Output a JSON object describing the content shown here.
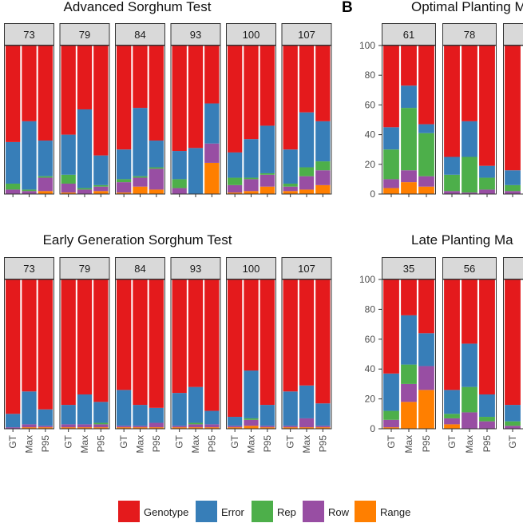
{
  "colors": {
    "Genotype": "#E41A1C",
    "Error": "#377EB8",
    "Rep": "#4DAF4A",
    "Row": "#984EA3",
    "Range": "#FF7F00"
  },
  "legend": {
    "labels": [
      "Genotype",
      "Error",
      "Rep",
      "Row",
      "Range"
    ]
  },
  "chart_data": [
    {
      "type": "stacked-bar",
      "title": "Advanced Sorghum Test",
      "letter": "",
      "facets": [
        {
          "label": "73",
          "bars": {
            "GT": {
              "Range": 0,
              "Row": 3,
              "Rep": 4,
              "Error": 28,
              "Genotype": 65
            },
            "Max": {
              "Range": 0,
              "Row": 2,
              "Rep": 1,
              "Error": 46,
              "Genotype": 51
            },
            "P95": {
              "Range": 2,
              "Row": 9,
              "Rep": 1,
              "Error": 24,
              "Genotype": 64
            }
          }
        },
        {
          "label": "79",
          "bars": {
            "GT": {
              "Range": 1,
              "Row": 6,
              "Rep": 6,
              "Error": 27,
              "Genotype": 60
            },
            "Max": {
              "Range": 0,
              "Row": 3,
              "Rep": 1,
              "Error": 53,
              "Genotype": 43
            },
            "P95": {
              "Range": 2,
              "Row": 3,
              "Rep": 1,
              "Error": 20,
              "Genotype": 74
            }
          }
        },
        {
          "label": "84",
          "bars": {
            "GT": {
              "Range": 1,
              "Row": 7,
              "Rep": 2,
              "Error": 20,
              "Genotype": 70
            },
            "Max": {
              "Range": 5,
              "Row": 6,
              "Rep": 1,
              "Error": 46,
              "Genotype": 42
            },
            "P95": {
              "Range": 3,
              "Row": 14,
              "Rep": 1,
              "Error": 18,
              "Genotype": 64
            }
          }
        },
        {
          "label": "93",
          "bars": {
            "GT": {
              "Range": 0,
              "Row": 4,
              "Rep": 6,
              "Error": 19,
              "Genotype": 71
            },
            "Max": {
              "Range": 0,
              "Row": 0,
              "Rep": 0,
              "Error": 31,
              "Genotype": 69
            },
            "P95": {
              "Range": 21,
              "Row": 13,
              "Rep": 0,
              "Error": 27,
              "Genotype": 39
            }
          }
        },
        {
          "label": "100",
          "bars": {
            "GT": {
              "Range": 1,
              "Row": 5,
              "Rep": 5,
              "Error": 17,
              "Genotype": 72
            },
            "Max": {
              "Range": 2,
              "Row": 8,
              "Rep": 1,
              "Error": 26,
              "Genotype": 63
            },
            "P95": {
              "Range": 5,
              "Row": 8,
              "Rep": 1,
              "Error": 32,
              "Genotype": 54
            }
          }
        },
        {
          "label": "107",
          "bars": {
            "GT": {
              "Range": 2,
              "Row": 3,
              "Rep": 2,
              "Error": 23,
              "Genotype": 70
            },
            "Max": {
              "Range": 3,
              "Row": 9,
              "Rep": 6,
              "Error": 37,
              "Genotype": 45
            },
            "P95": {
              "Range": 6,
              "Row": 10,
              "Rep": 6,
              "Error": 27,
              "Genotype": 51
            }
          }
        }
      ]
    },
    {
      "type": "stacked-bar",
      "title": "Early Generation Sorghum Test",
      "letter": "",
      "facets": [
        {
          "label": "73",
          "bars": {
            "GT": {
              "Range": 0,
              "Row": 1,
              "Rep": 0,
              "Error": 9,
              "Genotype": 90
            },
            "Max": {
              "Range": 1,
              "Row": 2,
              "Rep": 0,
              "Error": 22,
              "Genotype": 75
            },
            "P95": {
              "Range": 1,
              "Row": 1,
              "Rep": 0,
              "Error": 11,
              "Genotype": 87
            }
          }
        },
        {
          "label": "79",
          "bars": {
            "GT": {
              "Range": 1,
              "Row": 2,
              "Rep": 0,
              "Error": 13,
              "Genotype": 84
            },
            "Max": {
              "Range": 1,
              "Row": 2,
              "Rep": 0,
              "Error": 20,
              "Genotype": 77
            },
            "P95": {
              "Range": 1,
              "Row": 2,
              "Rep": 1,
              "Error": 14,
              "Genotype": 82
            }
          }
        },
        {
          "label": "84",
          "bars": {
            "GT": {
              "Range": 1,
              "Row": 1,
              "Rep": 0,
              "Error": 24,
              "Genotype": 74
            },
            "Max": {
              "Range": 1,
              "Row": 1,
              "Rep": 0,
              "Error": 14,
              "Genotype": 84
            },
            "P95": {
              "Range": 1,
              "Row": 3,
              "Rep": 0,
              "Error": 10,
              "Genotype": 86
            }
          }
        },
        {
          "label": "93",
          "bars": {
            "GT": {
              "Range": 1,
              "Row": 1,
              "Rep": 0,
              "Error": 22,
              "Genotype": 76
            },
            "Max": {
              "Range": 1,
              "Row": 2,
              "Rep": 1,
              "Error": 24,
              "Genotype": 72
            },
            "P95": {
              "Range": 1,
              "Row": 2,
              "Rep": 0,
              "Error": 9,
              "Genotype": 88
            }
          }
        },
        {
          "label": "100",
          "bars": {
            "GT": {
              "Range": 1,
              "Row": 1,
              "Rep": 0,
              "Error": 6,
              "Genotype": 92
            },
            "Max": {
              "Range": 2,
              "Row": 4,
              "Rep": 1,
              "Error": 32,
              "Genotype": 61
            },
            "P95": {
              "Range": 1,
              "Row": 1,
              "Rep": 0,
              "Error": 14,
              "Genotype": 84
            }
          }
        },
        {
          "label": "107",
          "bars": {
            "GT": {
              "Range": 1,
              "Row": 1,
              "Rep": 0,
              "Error": 23,
              "Genotype": 75
            },
            "Max": {
              "Range": 1,
              "Row": 6,
              "Rep": 0,
              "Error": 22,
              "Genotype": 71
            },
            "P95": {
              "Range": 1,
              "Row": 1,
              "Rep": 0,
              "Error": 15,
              "Genotype": 83
            }
          }
        }
      ]
    },
    {
      "type": "stacked-bar",
      "title": "Optimal Planting M",
      "letter": "B",
      "yticks": [
        "0",
        "20",
        "40",
        "60",
        "80",
        "100"
      ],
      "facets": [
        {
          "label": "61",
          "bars": {
            "GT": {
              "Range": 4,
              "Row": 6,
              "Rep": 20,
              "Error": 15,
              "Genotype": 55
            },
            "Max": {
              "Range": 8,
              "Row": 8,
              "Rep": 42,
              "Error": 15,
              "Genotype": 27
            },
            "P95": {
              "Range": 5,
              "Row": 7,
              "Rep": 29,
              "Error": 6,
              "Genotype": 53
            }
          }
        },
        {
          "label": "78",
          "bars": {
            "GT": {
              "Range": 0,
              "Row": 2,
              "Rep": 11,
              "Error": 12,
              "Genotype": 75
            },
            "Max": {
              "Range": 0,
              "Row": 1,
              "Rep": 24,
              "Error": 24,
              "Genotype": 51
            },
            "P95": {
              "Range": 0,
              "Row": 3,
              "Rep": 8,
              "Error": 8,
              "Genotype": 81
            }
          }
        },
        {
          "label": "",
          "bars": {
            "GT": {
              "Range": 0,
              "Row": 2,
              "Rep": 4,
              "Error": 10,
              "Genotype": 84
            }
          }
        }
      ]
    },
    {
      "type": "stacked-bar",
      "title": "Late Planting Ma",
      "letter": "",
      "yticks": [
        "0",
        "20",
        "40",
        "60",
        "80",
        "100"
      ],
      "xticks": [
        "GT",
        "Max",
        "P95"
      ],
      "facets": [
        {
          "label": "35",
          "bars": {
            "GT": {
              "Range": 1,
              "Row": 5,
              "Rep": 6,
              "Error": 25,
              "Genotype": 63
            },
            "Max": {
              "Range": 18,
              "Row": 12,
              "Rep": 13,
              "Error": 33,
              "Genotype": 24
            },
            "P95": {
              "Range": 26,
              "Row": 16,
              "Rep": 0,
              "Error": 22,
              "Genotype": 36
            }
          }
        },
        {
          "label": "56",
          "bars": {
            "GT": {
              "Range": 3,
              "Row": 4,
              "Rep": 3,
              "Error": 16,
              "Genotype": 74
            },
            "Max": {
              "Range": 0,
              "Row": 11,
              "Rep": 17,
              "Error": 29,
              "Genotype": 43
            },
            "P95": {
              "Range": 0,
              "Row": 5,
              "Rep": 3,
              "Error": 15,
              "Genotype": 77
            }
          }
        },
        {
          "label": "",
          "bars": {
            "GT": {
              "Range": 0,
              "Row": 2,
              "Rep": 3,
              "Error": 11,
              "Genotype": 84
            }
          }
        }
      ]
    }
  ]
}
